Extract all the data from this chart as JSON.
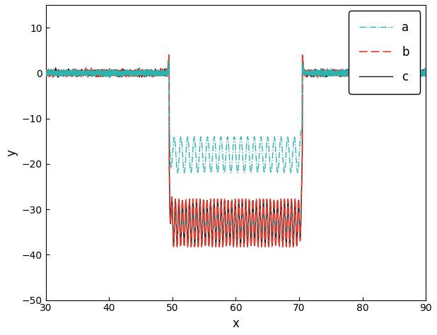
{
  "xlim": [
    30,
    90
  ],
  "ylim": [
    -50,
    15
  ],
  "xlabel": "x",
  "ylabel": "y",
  "yticks": [
    -50,
    -40,
    -30,
    -20,
    -10,
    0,
    10
  ],
  "xticks": [
    30,
    40,
    50,
    60,
    70,
    80,
    90
  ],
  "color_a": "#2ab5b0",
  "color_b": "#e8392a",
  "color_c": "#1a1a1a",
  "legend_labels": [
    "a",
    "b",
    "c"
  ],
  "x_start": 49.5,
  "x_end": 70.5,
  "figsize": [
    6.18,
    4.74
  ],
  "dpi": 100
}
